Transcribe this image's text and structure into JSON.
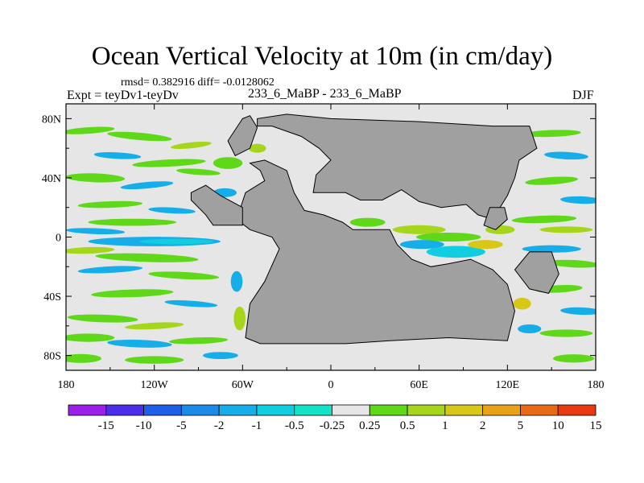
{
  "chart_data": {
    "type": "heatmap",
    "title": "Ocean Vertical Velocity at 10m (in cm/day)",
    "stats_text": "rmsd= 0.382916 diff= -0.0128062",
    "left_label": "Expt = teyDv1-teyDv",
    "center_label": "233_6_MaBP - 233_6_MaBP",
    "right_label": "DJF",
    "x_axis": {
      "range": [
        -180,
        180
      ],
      "ticks": [
        {
          "value": -180,
          "label": "180"
        },
        {
          "value": -120,
          "label": "120W"
        },
        {
          "value": -60,
          "label": "60W"
        },
        {
          "value": 0,
          "label": "0"
        },
        {
          "value": 60,
          "label": "60E"
        },
        {
          "value": 120,
          "label": "120E"
        },
        {
          "value": 180,
          "label": "180"
        }
      ]
    },
    "y_axis": {
      "range": [
        -90,
        90
      ],
      "ticks": [
        {
          "value": 80,
          "label": "80N"
        },
        {
          "value": 40,
          "label": "40N"
        },
        {
          "value": 0,
          "label": "0"
        },
        {
          "value": -40,
          "label": "40S"
        },
        {
          "value": -80,
          "label": "80S"
        }
      ]
    },
    "colorbar": {
      "boundaries": [
        "-15",
        "-10",
        "-5",
        "-2",
        "-1",
        "-0.5",
        "-0.25",
        "0.25",
        "0.5",
        "1",
        "2",
        "5",
        "10",
        "15"
      ],
      "colors": [
        "#9b1fe8",
        "#4a2ee8",
        "#1f5ee6",
        "#1b8be8",
        "#16aee8",
        "#11cde0",
        "#12e3c6",
        "#e6e6e6",
        "#5ed818",
        "#a6d61c",
        "#d7c818",
        "#e8a21a",
        "#e86a14",
        "#e83a10"
      ]
    },
    "land_color": "#a0a0a0",
    "neutral_color": "#e6e6e6",
    "land_polygons": [
      [
        [
          -50,
          75
        ],
        [
          -40,
          75
        ],
        [
          -20,
          68
        ],
        [
          -8,
          60
        ],
        [
          0,
          52
        ],
        [
          -10,
          42
        ],
        [
          -12,
          30
        ],
        [
          10,
          30
        ],
        [
          20,
          25
        ],
        [
          35,
          25
        ],
        [
          48,
          32
        ],
        [
          60,
          24
        ],
        [
          75,
          20
        ],
        [
          92,
          22
        ],
        [
          100,
          15
        ],
        [
          110,
          12
        ],
        [
          120,
          28
        ],
        [
          125,
          40
        ],
        [
          128,
          52
        ],
        [
          140,
          60
        ],
        [
          135,
          75
        ],
        [
          110,
          75
        ],
        [
          60,
          78
        ],
        [
          0,
          80
        ],
        [
          -30,
          83
        ],
        [
          -50,
          80
        ]
      ],
      [
        [
          -60,
          80
        ],
        [
          -55,
          82
        ],
        [
          -50,
          74
        ],
        [
          -55,
          60
        ],
        [
          -65,
          55
        ],
        [
          -70,
          65
        ]
      ],
      [
        [
          -55,
          50
        ],
        [
          -48,
          45
        ],
        [
          -45,
          38
        ],
        [
          -58,
          30
        ],
        [
          -64,
          12
        ],
        [
          -55,
          5
        ],
        [
          -40,
          0
        ],
        [
          -35,
          -8
        ],
        [
          -45,
          -30
        ],
        [
          -55,
          -45
        ],
        [
          -58,
          -68
        ],
        [
          -48,
          -72
        ],
        [
          -30,
          -72
        ],
        [
          10,
          -72
        ],
        [
          40,
          -70
        ],
        [
          80,
          -68
        ],
        [
          120,
          -70
        ],
        [
          125,
          -50
        ],
        [
          120,
          -32
        ],
        [
          110,
          -22
        ],
        [
          95,
          -15
        ],
        [
          80,
          -18
        ],
        [
          68,
          -20
        ],
        [
          55,
          -15
        ],
        [
          45,
          -5
        ],
        [
          40,
          5
        ],
        [
          15,
          5
        ],
        [
          8,
          10
        ],
        [
          -5,
          15
        ],
        [
          -18,
          18
        ],
        [
          -25,
          30
        ],
        [
          -30,
          45
        ],
        [
          -45,
          52
        ]
      ],
      [
        [
          -95,
          25
        ],
        [
          -85,
          15
        ],
        [
          -80,
          8
        ],
        [
          -60,
          8
        ],
        [
          -60,
          20
        ],
        [
          -75,
          28
        ],
        [
          -85,
          35
        ],
        [
          -95,
          30
        ]
      ],
      [
        [
          108,
          20
        ],
        [
          118,
          20
        ],
        [
          120,
          12
        ],
        [
          112,
          5
        ],
        [
          104,
          8
        ]
      ],
      [
        [
          135,
          -10
        ],
        [
          150,
          -10
        ],
        [
          155,
          -25
        ],
        [
          148,
          -38
        ],
        [
          135,
          -35
        ],
        [
          125,
          -22
        ]
      ]
    ],
    "anomaly_ellipses": [
      {
        "lon": -165,
        "lat": 72,
        "rx": 18,
        "ry": 2.2,
        "level": 8,
        "angle": -4
      },
      {
        "lon": -130,
        "lat": 68,
        "rx": 22,
        "ry": 2.5,
        "level": 8,
        "angle": 5
      },
      {
        "lon": -95,
        "lat": 62,
        "rx": 14,
        "ry": 2.0,
        "level": 9,
        "angle": -6
      },
      {
        "lon": -145,
        "lat": 55,
        "rx": 16,
        "ry": 2.2,
        "level": 4,
        "angle": 3
      },
      {
        "lon": -110,
        "lat": 50,
        "rx": 25,
        "ry": 2.4,
        "level": 8,
        "angle": -3
      },
      {
        "lon": -160,
        "lat": 40,
        "rx": 20,
        "ry": 3.0,
        "level": 8,
        "angle": 2
      },
      {
        "lon": -125,
        "lat": 35,
        "rx": 18,
        "ry": 2.2,
        "level": 4,
        "angle": -5
      },
      {
        "lon": -90,
        "lat": 44,
        "rx": 15,
        "ry": 2.0,
        "level": 8,
        "angle": 4
      },
      {
        "lon": -150,
        "lat": 22,
        "rx": 22,
        "ry": 2.2,
        "level": 8,
        "angle": -2
      },
      {
        "lon": -108,
        "lat": 18,
        "rx": 16,
        "ry": 2.0,
        "level": 4,
        "angle": 3
      },
      {
        "lon": -135,
        "lat": 10,
        "rx": 30,
        "ry": 2.4,
        "level": 8,
        "angle": 0
      },
      {
        "lon": -160,
        "lat": 4,
        "rx": 20,
        "ry": 2.0,
        "level": 4,
        "angle": 2
      },
      {
        "lon": -120,
        "lat": -3,
        "rx": 45,
        "ry": 3.2,
        "level": 4,
        "angle": 0
      },
      {
        "lon": -105,
        "lat": -3,
        "rx": 25,
        "ry": 1.8,
        "level": 5,
        "angle": 0
      },
      {
        "lon": -165,
        "lat": -9,
        "rx": 18,
        "ry": 2.2,
        "level": 9,
        "angle": -2
      },
      {
        "lon": -125,
        "lat": -14,
        "rx": 35,
        "ry": 2.8,
        "level": 8,
        "angle": 2
      },
      {
        "lon": -150,
        "lat": -22,
        "rx": 22,
        "ry": 2.2,
        "level": 4,
        "angle": -3
      },
      {
        "lon": -100,
        "lat": -26,
        "rx": 24,
        "ry": 2.4,
        "level": 8,
        "angle": 3
      },
      {
        "lon": -135,
        "lat": -38,
        "rx": 28,
        "ry": 2.6,
        "level": 8,
        "angle": -2
      },
      {
        "lon": -95,
        "lat": -45,
        "rx": 18,
        "ry": 2.0,
        "level": 4,
        "angle": 4
      },
      {
        "lon": -155,
        "lat": -55,
        "rx": 24,
        "ry": 2.6,
        "level": 8,
        "angle": 2
      },
      {
        "lon": -120,
        "lat": -60,
        "rx": 20,
        "ry": 2.2,
        "level": 9,
        "angle": -3
      },
      {
        "lon": -165,
        "lat": -68,
        "rx": 18,
        "ry": 2.8,
        "level": 8,
        "angle": 0
      },
      {
        "lon": -130,
        "lat": -72,
        "rx": 22,
        "ry": 2.6,
        "level": 4,
        "angle": 2
      },
      {
        "lon": -90,
        "lat": -70,
        "rx": 20,
        "ry": 2.2,
        "level": 8,
        "angle": -2
      },
      {
        "lon": -170,
        "lat": -82,
        "rx": 14,
        "ry": 3.0,
        "level": 8,
        "angle": 0
      },
      {
        "lon": -120,
        "lat": -83,
        "rx": 20,
        "ry": 2.6,
        "level": 8,
        "angle": 0
      },
      {
        "lon": -75,
        "lat": -80,
        "rx": 12,
        "ry": 2.4,
        "level": 4,
        "angle": 0
      },
      {
        "lon": -62,
        "lat": -55,
        "rx": 4,
        "ry": 8,
        "level": 9,
        "angle": 0
      },
      {
        "lon": -64,
        "lat": -30,
        "rx": 4,
        "ry": 7,
        "level": 4,
        "angle": 0
      },
      {
        "lon": -70,
        "lat": 50,
        "rx": 10,
        "ry": 4,
        "level": 8,
        "angle": 0
      },
      {
        "lon": -72,
        "lat": 30,
        "rx": 8,
        "ry": 3,
        "level": 4,
        "angle": 0
      },
      {
        "lon": -50,
        "lat": 60,
        "rx": 6,
        "ry": 3,
        "level": 9,
        "angle": 0
      },
      {
        "lon": -15,
        "lat": -18,
        "rx": 10,
        "ry": 3,
        "level": 8,
        "angle": 0
      },
      {
        "lon": -20,
        "lat": -35,
        "rx": 8,
        "ry": 2,
        "level": 4,
        "angle": 0
      },
      {
        "lon": 25,
        "lat": 10,
        "rx": 12,
        "ry": 3,
        "level": 8,
        "angle": 0
      },
      {
        "lon": 60,
        "lat": 5,
        "rx": 18,
        "ry": 3,
        "level": 9,
        "angle": 0
      },
      {
        "lon": 80,
        "lat": 0,
        "rx": 22,
        "ry": 3,
        "level": 8,
        "angle": 0
      },
      {
        "lon": 62,
        "lat": -5,
        "rx": 15,
        "ry": 3,
        "level": 4,
        "angle": 0
      },
      {
        "lon": 85,
        "lat": -10,
        "rx": 20,
        "ry": 4,
        "level": 5,
        "angle": 0
      },
      {
        "lon": 105,
        "lat": -5,
        "rx": 12,
        "ry": 3,
        "level": 10,
        "angle": 0
      },
      {
        "lon": 70,
        "lat": -25,
        "rx": 15,
        "ry": 3,
        "level": 8,
        "angle": 0
      },
      {
        "lon": 130,
        "lat": -45,
        "rx": 6,
        "ry": 4,
        "level": 10,
        "angle": 0
      },
      {
        "lon": 135,
        "lat": -62,
        "rx": 8,
        "ry": 3,
        "level": 4,
        "angle": 0
      },
      {
        "lon": 115,
        "lat": 5,
        "rx": 10,
        "ry": 3,
        "level": 9,
        "angle": 0
      },
      {
        "lon": 65,
        "lat": 50,
        "rx": 22,
        "ry": 2.5,
        "level": 8,
        "angle": 3
      },
      {
        "lon": 95,
        "lat": 45,
        "rx": 18,
        "ry": 2.3,
        "level": 4,
        "angle": -3
      },
      {
        "lon": 40,
        "lat": 42,
        "rx": 15,
        "ry": 2.3,
        "level": 9,
        "angle": 0
      },
      {
        "lon": 150,
        "lat": 70,
        "rx": 20,
        "ry": 2.3,
        "level": 8,
        "angle": -2
      },
      {
        "lon": 160,
        "lat": 55,
        "rx": 15,
        "ry": 2.5,
        "level": 4,
        "angle": 3
      },
      {
        "lon": 150,
        "lat": 38,
        "rx": 18,
        "ry": 2.5,
        "level": 8,
        "angle": -4
      },
      {
        "lon": 170,
        "lat": 25,
        "rx": 14,
        "ry": 2.5,
        "level": 4,
        "angle": 2
      },
      {
        "lon": 145,
        "lat": 12,
        "rx": 22,
        "ry": 2.5,
        "level": 8,
        "angle": -2
      },
      {
        "lon": 160,
        "lat": 5,
        "rx": 18,
        "ry": 2.2,
        "level": 9,
        "angle": 0
      },
      {
        "lon": 150,
        "lat": -8,
        "rx": 20,
        "ry": 2.5,
        "level": 4,
        "angle": 0
      },
      {
        "lon": 165,
        "lat": -18,
        "rx": 18,
        "ry": 2.5,
        "level": 8,
        "angle": 3
      },
      {
        "lon": 155,
        "lat": -35,
        "rx": 16,
        "ry": 2.5,
        "level": 8,
        "angle": -3
      },
      {
        "lon": 170,
        "lat": -50,
        "rx": 14,
        "ry": 2.5,
        "level": 4,
        "angle": 2
      },
      {
        "lon": 160,
        "lat": -65,
        "rx": 18,
        "ry": 2.5,
        "level": 8,
        "angle": 0
      },
      {
        "lon": 165,
        "lat": -82,
        "rx": 14,
        "ry": 2.8,
        "level": 8,
        "angle": 0
      }
    ]
  }
}
